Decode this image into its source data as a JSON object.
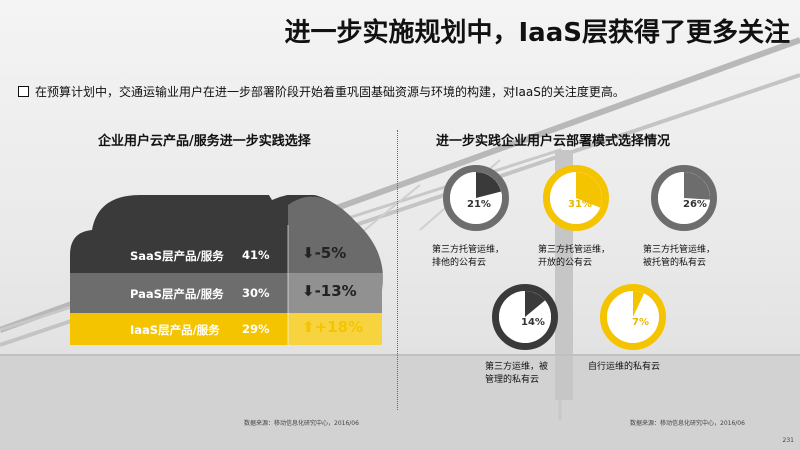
{
  "title": "进一步实施规划中，IaaS层获得了更多关注",
  "bullet": "在预算计划中，交通运输业用户在进一步部署阶段开始着重巩固基础资源与环境的构建，对IaaS的关注度更高。",
  "left_title": "企业用户云产品/服务进一步实践选择",
  "right_title": "进一步实践企业用户云部署模式选择情况",
  "source_left": "数据来源：移动信息化研究中心，2016/06",
  "source_right": "数据来源：移动信息化研究中心，2016/06",
  "page_number": "231",
  "colors": {
    "accent": "#f5c400",
    "dark": "#3a3a3a",
    "mid": "#6d6d6d",
    "light": "#9a9a9a"
  },
  "chart_data": [
    {
      "type": "bar",
      "title": "企业用户云产品/服务进一步实践选择",
      "categories": [
        "SaaS层产品/服务",
        "PaaS层产品/服务",
        "IaaS层产品/服务"
      ],
      "values": [
        41,
        30,
        29
      ],
      "value_labels": [
        "41%",
        "30%",
        "29%"
      ],
      "changes": [
        -5,
        -13,
        18
      ],
      "change_labels": [
        "-5%",
        "-13%",
        "+18%"
      ],
      "change_icons": [
        "arrow-down-icon",
        "arrow-down-icon",
        "arrow-up-icon"
      ]
    },
    {
      "type": "pie",
      "title": "进一步实践企业用户云部署模式选择情况",
      "slices": [
        {
          "label": "第三方托管运维，排他的公有云",
          "lines": [
            "第三方托管运维，",
            "排他的公有云"
          ],
          "value": 21,
          "text": "21%"
        },
        {
          "label": "第三方托管运维，开放的公有云",
          "lines": [
            "第三方托管运维，",
            "开放的公有云"
          ],
          "value": 31,
          "text": "31%"
        },
        {
          "label": "第三方托管运维，被托管的私有云",
          "lines": [
            "第三方托管运维，",
            "被托管的私有云"
          ],
          "value": 26,
          "text": "26%"
        },
        {
          "label": "第三方运维，被管理的私有云",
          "lines": [
            "第三方运维，被",
            "管理的私有云"
          ],
          "value": 14,
          "text": "14%"
        },
        {
          "label": "自行运维的私有云",
          "lines": [
            "自行运维的私有云"
          ],
          "value": 7,
          "text": "7%"
        }
      ]
    }
  ]
}
